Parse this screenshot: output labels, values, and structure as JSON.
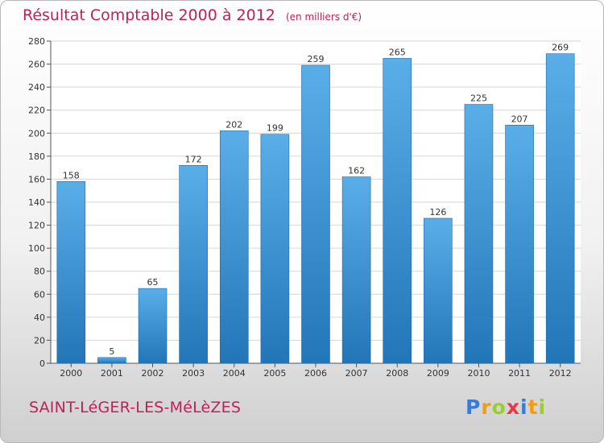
{
  "header": {
    "title": "Résultat Comptable 2000 à 2012",
    "subtitle": "(en milliers d'€)"
  },
  "footer": {
    "city": "SAINT-LéGER-LES-MéLèZES",
    "logo_letters": [
      {
        "ch": "P",
        "color": "#3a7bd5"
      },
      {
        "ch": "r",
        "color": "#f39c12"
      },
      {
        "ch": "o",
        "color": "#9acd32"
      },
      {
        "ch": "x",
        "color": "#e63946"
      },
      {
        "ch": "i",
        "color": "#3a7bd5"
      },
      {
        "ch": "t",
        "color": "#f39c12"
      },
      {
        "ch": "i",
        "color": "#9acd32"
      }
    ]
  },
  "colors": {
    "bar_top": "#5aaee8",
    "bar_bottom": "#2276b8",
    "grid": "#d6d6d6",
    "title": "#c0205a"
  },
  "chart_data": {
    "type": "bar",
    "categories": [
      "2000",
      "2001",
      "2002",
      "2003",
      "2004",
      "2005",
      "2006",
      "2007",
      "2008",
      "2009",
      "2010",
      "2011",
      "2012"
    ],
    "values": [
      158,
      5,
      65,
      172,
      202,
      199,
      259,
      162,
      265,
      126,
      225,
      207,
      269
    ],
    "yticks": [
      0,
      20,
      40,
      60,
      80,
      100,
      120,
      140,
      160,
      180,
      200,
      220,
      240,
      260,
      280
    ],
    "ylim": [
      0,
      280
    ],
    "grid": true,
    "xlabel": "",
    "ylabel": ""
  }
}
